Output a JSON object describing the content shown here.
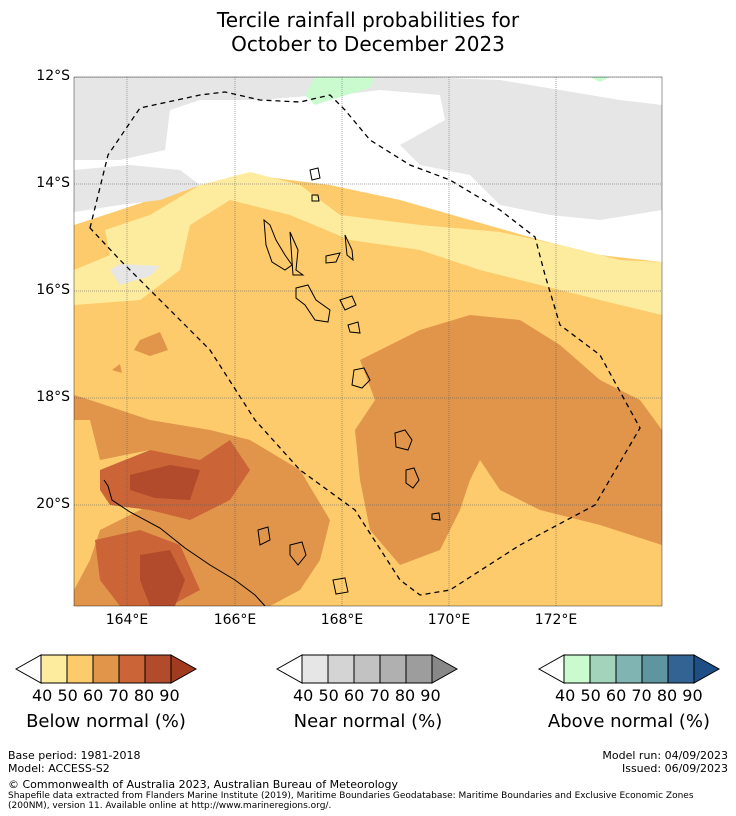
{
  "title_line1": "Tercile rainfall probabilities for",
  "title_line2": "October to December 2023",
  "lat_labels": [
    "12°S",
    "14°S",
    "16°S",
    "18°S",
    "20°S"
  ],
  "lon_labels": [
    "164°E",
    "166°E",
    "168°E",
    "170°E",
    "172°E"
  ],
  "colorbars": [
    {
      "label": "Below normal (%)",
      "ticks": [
        "40",
        "50",
        "60",
        "70",
        "80",
        "90"
      ],
      "colors": [
        "#ffffff",
        "#feec9e",
        "#fdcb6c",
        "#e0954b",
        "#cb6436",
        "#b14b2b",
        "#a23a1f"
      ]
    },
    {
      "label": "Near normal (%)",
      "ticks": [
        "40",
        "50",
        "60",
        "70",
        "80",
        "90"
      ],
      "colors": [
        "#ffffff",
        "#e6e6e6",
        "#d4d4d4",
        "#c2c2c2",
        "#b0b0b0",
        "#9d9d9d",
        "#888888"
      ]
    },
    {
      "label": "Above normal (%)",
      "ticks": [
        "40",
        "50",
        "60",
        "70",
        "80",
        "90"
      ],
      "colors": [
        "#ffffff",
        "#c9fbce",
        "#a1d4bb",
        "#7fb4b2",
        "#5e959e",
        "#336393",
        "#1d4f84"
      ]
    }
  ],
  "footer": {
    "base_period": "Base period: 1981-2018",
    "model": "Model: ACCESS-S2",
    "model_run": "Model run: 04/09/2023",
    "issued": "Issued: 06/09/2023",
    "copyright": "© Commonwealth of Australia 2023, Australian Bureau of Meteorology",
    "shapefile_line1": "Shapefile data extracted from Flanders Marine Institute (2019), Maritime Boundaries Geodatabase: Maritime Boundaries and Exclusive Economic Zones",
    "shapefile_line2": "(200NM), version 11. Available online at http://www.marineregions.org/."
  }
}
